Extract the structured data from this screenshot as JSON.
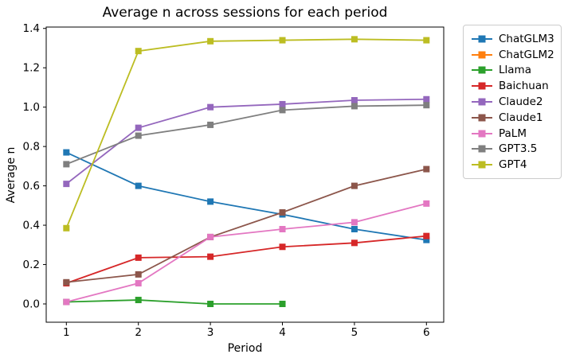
{
  "figure": {
    "title": "Average n across sessions for each period",
    "xlabel": "Period",
    "ylabel": "Average n"
  },
  "chart_data": {
    "type": "line",
    "title": "Average n across sessions for each period",
    "xlabel": "Period",
    "ylabel": "Average n",
    "x_ticks": [
      "1",
      "2",
      "3",
      "4",
      "5",
      "6"
    ],
    "y_ticks": [
      "0.0",
      "0.2",
      "0.4",
      "0.6",
      "0.8",
      "1.0",
      "1.2",
      "1.4"
    ],
    "xlim": [
      0.72,
      6.24
    ],
    "ylim": [
      -0.093,
      1.407
    ],
    "grid": false,
    "legend_position": "outside-right",
    "marker": "square",
    "series": [
      {
        "name": "ChatGLM3",
        "color": "#1f77b4",
        "x": [
          1,
          2,
          3,
          4,
          5,
          6
        ],
        "values": [
          0.77,
          0.6,
          0.52,
          0.455,
          0.38,
          0.325
        ]
      },
      {
        "name": "ChatGLM2",
        "color": "#ff7f0e",
        "x": [],
        "values": []
      },
      {
        "name": "Llama",
        "color": "#2ca02c",
        "x": [
          1,
          2,
          3,
          4
        ],
        "values": [
          0.01,
          0.02,
          0.0,
          0.0
        ]
      },
      {
        "name": "Baichuan",
        "color": "#d62728",
        "x": [
          1,
          2,
          3,
          4,
          5,
          6
        ],
        "values": [
          0.105,
          0.235,
          0.24,
          0.29,
          0.31,
          0.345
        ]
      },
      {
        "name": "Claude2",
        "color": "#9467bd",
        "x": [
          1,
          2,
          3,
          4,
          5,
          6
        ],
        "values": [
          0.61,
          0.895,
          1.0,
          1.015,
          1.035,
          1.04
        ]
      },
      {
        "name": "Claude1",
        "color": "#8c564b",
        "x": [
          1,
          2,
          3,
          4,
          5,
          6
        ],
        "values": [
          0.11,
          0.15,
          0.34,
          0.465,
          0.6,
          0.685
        ]
      },
      {
        "name": "PaLM",
        "color": "#e377c2",
        "x": [
          1,
          2,
          3,
          4,
          5,
          6
        ],
        "values": [
          0.01,
          0.105,
          0.34,
          0.38,
          0.415,
          0.51
        ]
      },
      {
        "name": "GPT3.5",
        "color": "#7f7f7f",
        "x": [
          1,
          2,
          3,
          4,
          5,
          6
        ],
        "values": [
          0.71,
          0.855,
          0.91,
          0.985,
          1.005,
          1.01
        ]
      },
      {
        "name": "GPT4",
        "color": "#bcbd22",
        "x": [
          1,
          2,
          3,
          4,
          5,
          6
        ],
        "values": [
          0.385,
          1.285,
          1.335,
          1.34,
          1.345,
          1.34
        ]
      }
    ]
  }
}
